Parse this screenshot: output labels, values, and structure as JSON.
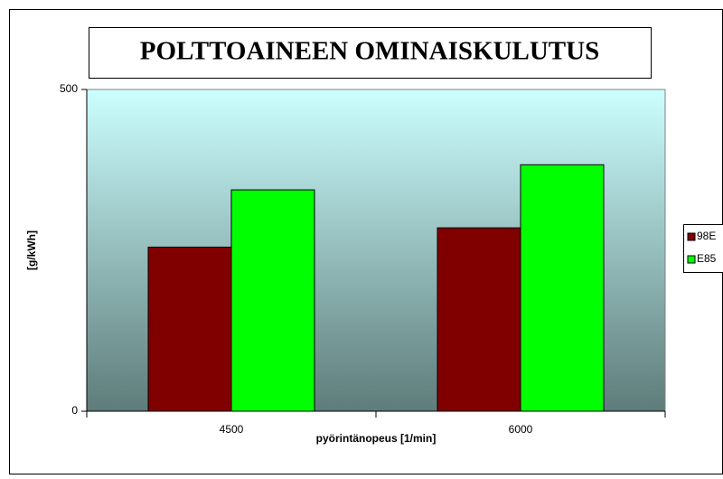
{
  "chart_data": {
    "type": "bar",
    "title": "POLTTOAINEEN OMINAISKULUTUS",
    "y_label": "[g/kWh]",
    "x_label": "pyörintänopeus [1/min]",
    "categories": [
      "4500",
      "6000"
    ],
    "series": [
      {
        "name": "98E",
        "color": "#800000",
        "values": [
          255,
          285
        ]
      },
      {
        "name": "E85",
        "color": "#00ff00",
        "values": [
          344,
          383
        ]
      }
    ],
    "ylim": [
      0,
      500
    ],
    "yticks": [
      0,
      500
    ],
    "legend": "right"
  }
}
